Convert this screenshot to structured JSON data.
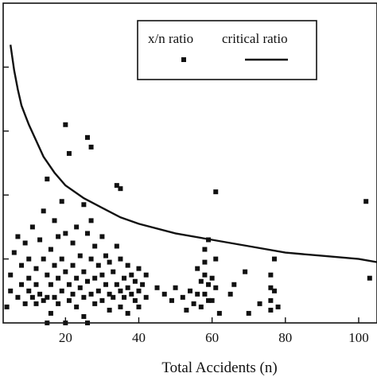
{
  "colors": {
    "ink": "#111111",
    "background": "#ffffff"
  },
  "chart_data": {
    "type": "scatter",
    "xlabel": "Total Accidents (n)",
    "ylabel": "",
    "title": "",
    "xlim": [
      3,
      105
    ],
    "ylim": [
      0.0,
      1.0
    ],
    "x_ticks": [
      {
        "value": 20,
        "label": "20"
      },
      {
        "value": 40,
        "label": "40"
      },
      {
        "value": 60,
        "label": "60"
      },
      {
        "value": 80,
        "label": "80"
      },
      {
        "value": 100,
        "label": "100"
      }
    ],
    "y_ticks": [
      0.2,
      0.4,
      0.6,
      0.8
    ],
    "legend": {
      "placement": "top-right",
      "entries": [
        {
          "label": "x/n ratio",
          "marker": "square"
        },
        {
          "label": "critical ratio",
          "marker": "line"
        }
      ]
    },
    "series": [
      {
        "name": "x/n ratio",
        "kind": "scatter",
        "points": [
          [
            4,
            0.05
          ],
          [
            5,
            0.1
          ],
          [
            5,
            0.15
          ],
          [
            6,
            0.22
          ],
          [
            7,
            0.27
          ],
          [
            7,
            0.08
          ],
          [
            8,
            0.18
          ],
          [
            8,
            0.12
          ],
          [
            9,
            0.25
          ],
          [
            9,
            0.06
          ],
          [
            10,
            0.2
          ],
          [
            10,
            0.14
          ],
          [
            10,
            0.1
          ],
          [
            11,
            0.3
          ],
          [
            11,
            0.08
          ],
          [
            12,
            0.17
          ],
          [
            12,
            0.12
          ],
          [
            12,
            0.06
          ],
          [
            13,
            0.09
          ],
          [
            13,
            0.26
          ],
          [
            14,
            0.35
          ],
          [
            14,
            0.2
          ],
          [
            14,
            0.07
          ],
          [
            15,
            0.45
          ],
          [
            15,
            0.15
          ],
          [
            15,
            0.08
          ],
          [
            15,
            0.0
          ],
          [
            16,
            0.23
          ],
          [
            16,
            0.12
          ],
          [
            16,
            0.03
          ],
          [
            17,
            0.32
          ],
          [
            17,
            0.18
          ],
          [
            17,
            0.08
          ],
          [
            18,
            0.27
          ],
          [
            18,
            0.14
          ],
          [
            18,
            0.06
          ],
          [
            19,
            0.38
          ],
          [
            19,
            0.2
          ],
          [
            19,
            0.1
          ],
          [
            20,
            0.0
          ],
          [
            20,
            0.62
          ],
          [
            20,
            0.28
          ],
          [
            20,
            0.16
          ],
          [
            21,
            0.53
          ],
          [
            21,
            0.12
          ],
          [
            21,
            0.07
          ],
          [
            22,
            0.25
          ],
          [
            22,
            0.18
          ],
          [
            22,
            0.09
          ],
          [
            23,
            0.3
          ],
          [
            23,
            0.14
          ],
          [
            23,
            0.05
          ],
          [
            24,
            0.21
          ],
          [
            24,
            0.11
          ],
          [
            25,
            0.37
          ],
          [
            25,
            0.16
          ],
          [
            25,
            0.08
          ],
          [
            25,
            0.02
          ],
          [
            26,
            0.58
          ],
          [
            26,
            0.28
          ],
          [
            26,
            0.13
          ],
          [
            26,
            0.0
          ],
          [
            27,
            0.55
          ],
          [
            27,
            0.32
          ],
          [
            27,
            0.2
          ],
          [
            27,
            0.09
          ],
          [
            28,
            0.24
          ],
          [
            28,
            0.14
          ],
          [
            28,
            0.06
          ],
          [
            29,
            0.18
          ],
          [
            29,
            0.1
          ],
          [
            30,
            0.27
          ],
          [
            30,
            0.15
          ],
          [
            30,
            0.07
          ],
          [
            31,
            0.21
          ],
          [
            31,
            0.12
          ],
          [
            32,
            0.19
          ],
          [
            32,
            0.09
          ],
          [
            32,
            0.04
          ],
          [
            33,
            0.16
          ],
          [
            33,
            0.08
          ],
          [
            34,
            0.43
          ],
          [
            34,
            0.24
          ],
          [
            34,
            0.12
          ],
          [
            35,
            0.42
          ],
          [
            35,
            0.2
          ],
          [
            35,
            0.1
          ],
          [
            35,
            0.05
          ],
          [
            36,
            0.14
          ],
          [
            36,
            0.08
          ],
          [
            37,
            0.18
          ],
          [
            37,
            0.11
          ],
          [
            37,
            0.03
          ],
          [
            38,
            0.15
          ],
          [
            38,
            0.09
          ],
          [
            39,
            0.13
          ],
          [
            39,
            0.07
          ],
          [
            40,
            0.17
          ],
          [
            40,
            0.1
          ],
          [
            40,
            0.05
          ],
          [
            41,
            0.12
          ],
          [
            42,
            0.15
          ],
          [
            42,
            0.08
          ],
          [
            45,
            0.11
          ],
          [
            47,
            0.09
          ],
          [
            49,
            0.07
          ],
          [
            50,
            0.11
          ],
          [
            52,
            0.08
          ],
          [
            53,
            0.04
          ],
          [
            54,
            0.1
          ],
          [
            55,
            0.06
          ],
          [
            56,
            0.17
          ],
          [
            56,
            0.09
          ],
          [
            57,
            0.13
          ],
          [
            57,
            0.05
          ],
          [
            58,
            0.23
          ],
          [
            58,
            0.19
          ],
          [
            58,
            0.15
          ],
          [
            58,
            0.09
          ],
          [
            59,
            0.26
          ],
          [
            59,
            0.12
          ],
          [
            59,
            0.07
          ],
          [
            60,
            0.14
          ],
          [
            60,
            0.07
          ],
          [
            61,
            0.41
          ],
          [
            61,
            0.2
          ],
          [
            61,
            0.11
          ],
          [
            62,
            0.03
          ],
          [
            65,
            0.09
          ],
          [
            66,
            0.12
          ],
          [
            69,
            0.16
          ],
          [
            70,
            0.03
          ],
          [
            73,
            0.06
          ],
          [
            76,
            0.04
          ],
          [
            76,
            0.07
          ],
          [
            76,
            0.11
          ],
          [
            76,
            0.15
          ],
          [
            77,
            0.2
          ],
          [
            77,
            0.1
          ],
          [
            78,
            0.05
          ],
          [
            102,
            0.38
          ],
          [
            103,
            0.14
          ]
        ]
      },
      {
        "name": "critical ratio",
        "kind": "line",
        "points": [
          [
            5,
            0.87
          ],
          [
            6,
            0.79
          ],
          [
            7,
            0.73
          ],
          [
            8,
            0.68
          ],
          [
            9,
            0.65
          ],
          [
            10,
            0.62
          ],
          [
            12,
            0.57
          ],
          [
            14,
            0.52
          ],
          [
            17,
            0.47
          ],
          [
            20,
            0.43
          ],
          [
            25,
            0.39
          ],
          [
            30,
            0.36
          ],
          [
            35,
            0.33
          ],
          [
            40,
            0.31
          ],
          [
            50,
            0.28
          ],
          [
            60,
            0.26
          ],
          [
            70,
            0.24
          ],
          [
            80,
            0.22
          ],
          [
            90,
            0.21
          ],
          [
            100,
            0.2
          ],
          [
            105,
            0.19
          ]
        ]
      }
    ]
  }
}
